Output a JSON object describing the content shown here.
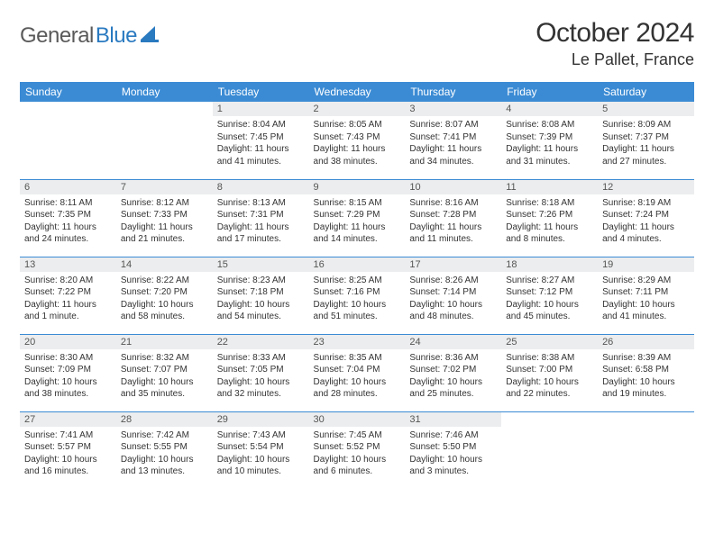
{
  "brand": {
    "name1": "General",
    "name2": "Blue"
  },
  "title": "October 2024",
  "location": "Le Pallet, France",
  "headers": [
    "Sunday",
    "Monday",
    "Tuesday",
    "Wednesday",
    "Thursday",
    "Friday",
    "Saturday"
  ],
  "colors": {
    "header_bg": "#3b8bd4",
    "daynum_bg": "#ecedee",
    "rule": "#3b8bd4"
  },
  "weeks": [
    [
      null,
      null,
      {
        "n": "1",
        "sr": "Sunrise: 8:04 AM",
        "ss": "Sunset: 7:45 PM",
        "dl": "Daylight: 11 hours and 41 minutes."
      },
      {
        "n": "2",
        "sr": "Sunrise: 8:05 AM",
        "ss": "Sunset: 7:43 PM",
        "dl": "Daylight: 11 hours and 38 minutes."
      },
      {
        "n": "3",
        "sr": "Sunrise: 8:07 AM",
        "ss": "Sunset: 7:41 PM",
        "dl": "Daylight: 11 hours and 34 minutes."
      },
      {
        "n": "4",
        "sr": "Sunrise: 8:08 AM",
        "ss": "Sunset: 7:39 PM",
        "dl": "Daylight: 11 hours and 31 minutes."
      },
      {
        "n": "5",
        "sr": "Sunrise: 8:09 AM",
        "ss": "Sunset: 7:37 PM",
        "dl": "Daylight: 11 hours and 27 minutes."
      }
    ],
    [
      {
        "n": "6",
        "sr": "Sunrise: 8:11 AM",
        "ss": "Sunset: 7:35 PM",
        "dl": "Daylight: 11 hours and 24 minutes."
      },
      {
        "n": "7",
        "sr": "Sunrise: 8:12 AM",
        "ss": "Sunset: 7:33 PM",
        "dl": "Daylight: 11 hours and 21 minutes."
      },
      {
        "n": "8",
        "sr": "Sunrise: 8:13 AM",
        "ss": "Sunset: 7:31 PM",
        "dl": "Daylight: 11 hours and 17 minutes."
      },
      {
        "n": "9",
        "sr": "Sunrise: 8:15 AM",
        "ss": "Sunset: 7:29 PM",
        "dl": "Daylight: 11 hours and 14 minutes."
      },
      {
        "n": "10",
        "sr": "Sunrise: 8:16 AM",
        "ss": "Sunset: 7:28 PM",
        "dl": "Daylight: 11 hours and 11 minutes."
      },
      {
        "n": "11",
        "sr": "Sunrise: 8:18 AM",
        "ss": "Sunset: 7:26 PM",
        "dl": "Daylight: 11 hours and 8 minutes."
      },
      {
        "n": "12",
        "sr": "Sunrise: 8:19 AM",
        "ss": "Sunset: 7:24 PM",
        "dl": "Daylight: 11 hours and 4 minutes."
      }
    ],
    [
      {
        "n": "13",
        "sr": "Sunrise: 8:20 AM",
        "ss": "Sunset: 7:22 PM",
        "dl": "Daylight: 11 hours and 1 minute."
      },
      {
        "n": "14",
        "sr": "Sunrise: 8:22 AM",
        "ss": "Sunset: 7:20 PM",
        "dl": "Daylight: 10 hours and 58 minutes."
      },
      {
        "n": "15",
        "sr": "Sunrise: 8:23 AM",
        "ss": "Sunset: 7:18 PM",
        "dl": "Daylight: 10 hours and 54 minutes."
      },
      {
        "n": "16",
        "sr": "Sunrise: 8:25 AM",
        "ss": "Sunset: 7:16 PM",
        "dl": "Daylight: 10 hours and 51 minutes."
      },
      {
        "n": "17",
        "sr": "Sunrise: 8:26 AM",
        "ss": "Sunset: 7:14 PM",
        "dl": "Daylight: 10 hours and 48 minutes."
      },
      {
        "n": "18",
        "sr": "Sunrise: 8:27 AM",
        "ss": "Sunset: 7:12 PM",
        "dl": "Daylight: 10 hours and 45 minutes."
      },
      {
        "n": "19",
        "sr": "Sunrise: 8:29 AM",
        "ss": "Sunset: 7:11 PM",
        "dl": "Daylight: 10 hours and 41 minutes."
      }
    ],
    [
      {
        "n": "20",
        "sr": "Sunrise: 8:30 AM",
        "ss": "Sunset: 7:09 PM",
        "dl": "Daylight: 10 hours and 38 minutes."
      },
      {
        "n": "21",
        "sr": "Sunrise: 8:32 AM",
        "ss": "Sunset: 7:07 PM",
        "dl": "Daylight: 10 hours and 35 minutes."
      },
      {
        "n": "22",
        "sr": "Sunrise: 8:33 AM",
        "ss": "Sunset: 7:05 PM",
        "dl": "Daylight: 10 hours and 32 minutes."
      },
      {
        "n": "23",
        "sr": "Sunrise: 8:35 AM",
        "ss": "Sunset: 7:04 PM",
        "dl": "Daylight: 10 hours and 28 minutes."
      },
      {
        "n": "24",
        "sr": "Sunrise: 8:36 AM",
        "ss": "Sunset: 7:02 PM",
        "dl": "Daylight: 10 hours and 25 minutes."
      },
      {
        "n": "25",
        "sr": "Sunrise: 8:38 AM",
        "ss": "Sunset: 7:00 PM",
        "dl": "Daylight: 10 hours and 22 minutes."
      },
      {
        "n": "26",
        "sr": "Sunrise: 8:39 AM",
        "ss": "Sunset: 6:58 PM",
        "dl": "Daylight: 10 hours and 19 minutes."
      }
    ],
    [
      {
        "n": "27",
        "sr": "Sunrise: 7:41 AM",
        "ss": "Sunset: 5:57 PM",
        "dl": "Daylight: 10 hours and 16 minutes."
      },
      {
        "n": "28",
        "sr": "Sunrise: 7:42 AM",
        "ss": "Sunset: 5:55 PM",
        "dl": "Daylight: 10 hours and 13 minutes."
      },
      {
        "n": "29",
        "sr": "Sunrise: 7:43 AM",
        "ss": "Sunset: 5:54 PM",
        "dl": "Daylight: 10 hours and 10 minutes."
      },
      {
        "n": "30",
        "sr": "Sunrise: 7:45 AM",
        "ss": "Sunset: 5:52 PM",
        "dl": "Daylight: 10 hours and 6 minutes."
      },
      {
        "n": "31",
        "sr": "Sunrise: 7:46 AM",
        "ss": "Sunset: 5:50 PM",
        "dl": "Daylight: 10 hours and 3 minutes."
      },
      null,
      null
    ]
  ]
}
